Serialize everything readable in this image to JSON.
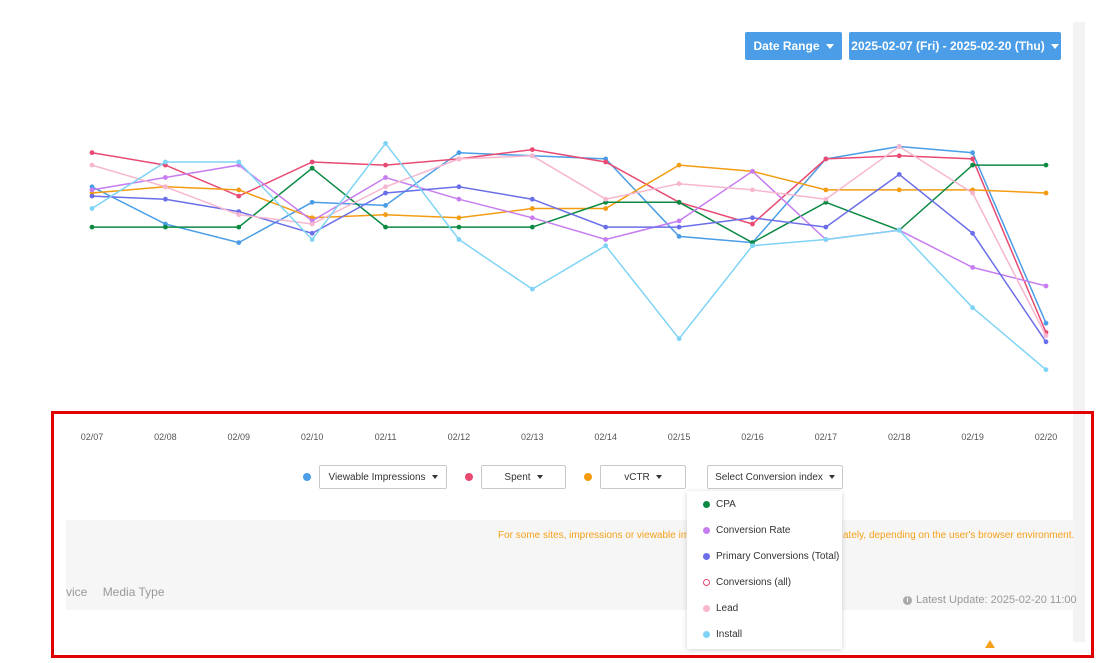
{
  "header": {
    "date_range_label": "Date Range",
    "date_range_value": "2025-02-07 (Fri) - 2025-02-20 (Thu)"
  },
  "chart_data": {
    "type": "line",
    "x": [
      "02/07",
      "02/08",
      "02/09",
      "02/10",
      "02/11",
      "02/12",
      "02/13",
      "02/14",
      "02/15",
      "02/16",
      "02/17",
      "02/18",
      "02/19",
      "02/20"
    ],
    "ylim": [
      0,
      100
    ],
    "grid": false,
    "series": [
      {
        "color": "#4a9de6",
        "values": [
          72,
          60,
          54,
          67,
          66,
          83,
          82,
          81,
          56,
          54,
          81,
          85,
          83,
          28
        ]
      },
      {
        "color": "#e84a72",
        "values": [
          83,
          79,
          69,
          80,
          79,
          81,
          84,
          80,
          67,
          60,
          81,
          82,
          81,
          25
        ]
      },
      {
        "color": "#f39c12",
        "values": [
          70,
          72,
          71,
          62,
          63,
          62,
          65,
          65,
          79,
          77,
          71,
          71,
          71,
          70
        ]
      },
      {
        "color": "#0c8a44",
        "values": [
          59,
          59,
          59,
          78,
          59,
          59,
          59,
          67,
          67,
          54,
          67,
          58,
          79,
          79
        ]
      },
      {
        "color": "#c77df0",
        "values": [
          71,
          75,
          79,
          61,
          75,
          68,
          62,
          55,
          61,
          77,
          55,
          58,
          46,
          40
        ]
      },
      {
        "color": "#6a6ee8",
        "values": [
          69,
          68,
          64,
          57,
          70,
          72,
          68,
          59,
          59,
          62,
          59,
          76,
          57,
          22
        ]
      },
      {
        "color": "#f7b6cf",
        "values": [
          79,
          72,
          63,
          60,
          72,
          81,
          82,
          68,
          73,
          71,
          68,
          85,
          70,
          24
        ]
      },
      {
        "color": "#7fd4f5",
        "values": [
          65,
          80,
          80,
          55,
          86,
          55,
          39,
          53,
          23,
          53,
          55,
          58,
          33,
          13
        ]
      }
    ]
  },
  "metrics": {
    "metric1": "Viewable Impressions",
    "metric2": "Spent",
    "metric3": "vCTR",
    "conversion_select": "Select Conversion index",
    "colors": {
      "metric1": "#4a9de6",
      "metric2": "#e84a72",
      "metric3": "#f39c12"
    }
  },
  "dropdown": {
    "items": [
      {
        "label": "CPA",
        "color": "#0c8a44",
        "filled": true
      },
      {
        "label": "Conversion Rate",
        "color": "#c77df0",
        "filled": true
      },
      {
        "label": "Primary Conversions (Total)",
        "color": "#6a6ee8",
        "filled": true
      },
      {
        "label": "Conversions (all)",
        "color": "#e84a72",
        "filled": false
      },
      {
        "label": "Lead",
        "color": "#f7b6cf",
        "filled": true
      },
      {
        "label": "Install",
        "color": "#7fd4f5",
        "filled": true
      }
    ]
  },
  "notice": {
    "left": "For some sites, impressions or viewable imp",
    "right": "ately, depending on the user's browser environment."
  },
  "table": {
    "tab_partial": "vice",
    "tab_media": "Media Type",
    "latest_update": "Latest Update: 2025-02-20 11:00"
  }
}
